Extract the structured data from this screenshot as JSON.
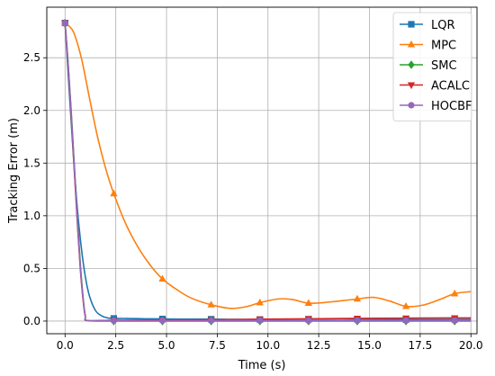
{
  "chart_data": {
    "type": "line",
    "title": "",
    "xlabel": "Time (s)",
    "ylabel": "Tracking Error (m)",
    "xlim": [
      -0.9,
      20.3
    ],
    "ylim": [
      -0.12,
      2.98
    ],
    "xticks": [
      0.0,
      2.5,
      5.0,
      7.5,
      10.0,
      12.5,
      15.0,
      17.5,
      20.0
    ],
    "xtick_labels": [
      "0.0",
      "2.5",
      "5.0",
      "7.5",
      "10.0",
      "12.5",
      "15.0",
      "17.5",
      "20.0"
    ],
    "yticks": [
      0.0,
      0.5,
      1.0,
      1.5,
      2.0,
      2.5
    ],
    "ytick_labels": [
      "0.0",
      "0.5",
      "1.0",
      "1.5",
      "2.0",
      "2.5"
    ],
    "grid": true,
    "legend_position": "top-right",
    "series": [
      {
        "name": "LQR",
        "color": "#1f77b4",
        "marker": "square",
        "x": [
          0,
          0.2,
          0.4,
          0.6,
          0.8,
          1.0,
          1.2,
          1.5,
          1.8,
          2.1,
          2.4,
          3.0,
          4.0,
          4.8,
          6.0,
          7.2,
          8.5,
          9.6,
          11.0,
          12.0,
          13.5,
          14.4,
          15.5,
          16.8,
          18.0,
          19.2,
          20.0
        ],
        "y": [
          2.83,
          2.2,
          1.6,
          1.08,
          0.7,
          0.42,
          0.24,
          0.1,
          0.05,
          0.03,
          0.025,
          0.025,
          0.022,
          0.02,
          0.018,
          0.018,
          0.016,
          0.015,
          0.016,
          0.018,
          0.02,
          0.018,
          0.016,
          0.014,
          0.015,
          0.016,
          0.016
        ],
        "marker_x": [
          0.0,
          2.4,
          4.8,
          7.2,
          9.6,
          12.0,
          14.4,
          16.8,
          19.2
        ],
        "marker_y": [
          2.83,
          0.025,
          0.02,
          0.018,
          0.015,
          0.018,
          0.018,
          0.014,
          0.016
        ]
      },
      {
        "name": "MPC",
        "color": "#ff7f0e",
        "marker": "triangle-up",
        "x": [
          0,
          0.4,
          0.8,
          1.2,
          1.6,
          2.0,
          2.4,
          3.0,
          3.6,
          4.2,
          4.8,
          5.5,
          6.2,
          7.2,
          8.2,
          9.0,
          9.6,
          10.5,
          11.2,
          12.0,
          13.0,
          14.4,
          15.2,
          16.0,
          16.8,
          17.6,
          18.4,
          19.2,
          20.0
        ],
        "y": [
          2.83,
          2.75,
          2.5,
          2.12,
          1.75,
          1.45,
          1.21,
          0.92,
          0.7,
          0.53,
          0.4,
          0.3,
          0.22,
          0.155,
          0.12,
          0.14,
          0.175,
          0.21,
          0.205,
          0.17,
          0.18,
          0.21,
          0.225,
          0.19,
          0.14,
          0.15,
          0.2,
          0.26,
          0.28
        ],
        "marker_x": [
          0.0,
          2.4,
          4.8,
          7.2,
          9.6,
          12.0,
          14.4,
          16.8,
          19.2
        ],
        "marker_y": [
          2.83,
          1.21,
          0.4,
          0.155,
          0.175,
          0.17,
          0.21,
          0.14,
          0.26
        ]
      },
      {
        "name": "SMC",
        "color": "#2ca02c",
        "marker": "diamond",
        "x": [
          0,
          0.15,
          0.3,
          0.45,
          0.6,
          0.75,
          0.9,
          1.0,
          1.1,
          2.4,
          4.8,
          7.2,
          9.6,
          12.0,
          14.4,
          16.8,
          19.2,
          20.0
        ],
        "y": [
          2.83,
          2.45,
          2.0,
          1.5,
          1.0,
          0.55,
          0.2,
          0.05,
          0.005,
          0.0,
          0.0,
          0.0,
          0.0,
          0.0,
          0.0,
          0.0,
          0.0,
          0.0
        ],
        "marker_x": [
          0.0,
          2.4,
          4.8,
          7.2,
          9.6,
          12.0,
          14.4,
          16.8,
          19.2
        ],
        "marker_y": [
          2.83,
          0.0,
          0.0,
          0.0,
          0.0,
          0.0,
          0.0,
          0.0,
          0.0
        ]
      },
      {
        "name": "ACALC",
        "color": "#d62728",
        "marker": "triangle-down",
        "x": [
          0,
          0.15,
          0.3,
          0.45,
          0.6,
          0.75,
          0.9,
          1.0,
          1.1,
          2.4,
          4.8,
          7.2,
          9.6,
          12.0,
          14.4,
          16.8,
          19.2,
          20.0
        ],
        "y": [
          2.83,
          2.42,
          1.95,
          1.45,
          0.95,
          0.5,
          0.18,
          0.04,
          0.005,
          0.008,
          0.01,
          0.012,
          0.018,
          0.022,
          0.026,
          0.028,
          0.03,
          0.03
        ],
        "marker_x": [
          0.0,
          2.4,
          4.8,
          7.2,
          9.6,
          12.0,
          14.4,
          16.8,
          19.2
        ],
        "marker_y": [
          2.83,
          0.008,
          0.01,
          0.012,
          0.018,
          0.022,
          0.026,
          0.028,
          0.03
        ]
      },
      {
        "name": "HOCBF",
        "color": "#9467bd",
        "marker": "circle",
        "x": [
          0,
          0.15,
          0.3,
          0.45,
          0.6,
          0.75,
          0.9,
          1.0,
          1.1,
          2.4,
          4.8,
          7.2,
          9.6,
          12.0,
          14.4,
          16.8,
          19.2,
          20.0
        ],
        "y": [
          2.83,
          2.44,
          1.98,
          1.48,
          0.98,
          0.52,
          0.19,
          0.045,
          0.005,
          0.004,
          0.004,
          0.004,
          0.004,
          0.004,
          0.004,
          0.004,
          0.004,
          0.004
        ],
        "marker_x": [
          0.0,
          2.4,
          4.8,
          7.2,
          9.6,
          12.0,
          14.4,
          16.8,
          19.2
        ],
        "marker_y": [
          2.83,
          0.004,
          0.004,
          0.004,
          0.004,
          0.004,
          0.004,
          0.004,
          0.004
        ]
      }
    ]
  }
}
